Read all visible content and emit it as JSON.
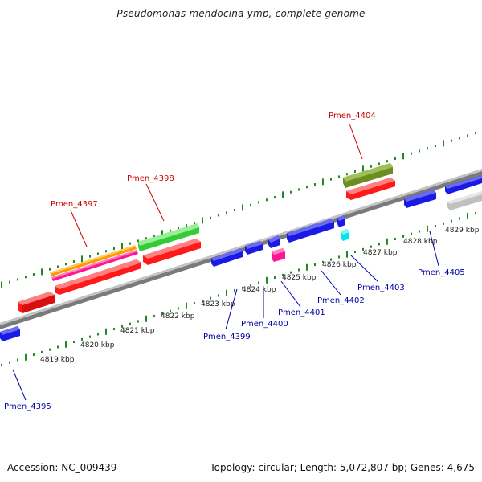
{
  "title": "Pseudomonas mendocina ymp, complete genome",
  "footer": {
    "accession": "Accession: NC_009439",
    "summary": "Topology: circular; Length: 5,072,807 bp; Genes: 4,675"
  },
  "colors": {
    "forward_label": "#cc0000",
    "reverse_label": "#0000aa",
    "ruler_ticks": "#228822",
    "backbone": "#888888"
  },
  "kbp_labels": [
    "4819 kbp",
    "4820 kbp",
    "4821 kbp",
    "4822 kbp",
    "4823 kbp",
    "4824 kbp",
    "4825 kbp",
    "4826 kbp",
    "4827 kbp",
    "4828 kbp",
    "4829 kbp"
  ],
  "gene_labels": {
    "forward": [
      "Pmen_4397",
      "Pmen_4398",
      "Pmen_4404"
    ],
    "reverse": [
      "Pmen_4395",
      "Pmen_4399",
      "Pmen_4400",
      "Pmen_4401",
      "Pmen_4402",
      "Pmen_4403",
      "Pmen_4405"
    ]
  }
}
